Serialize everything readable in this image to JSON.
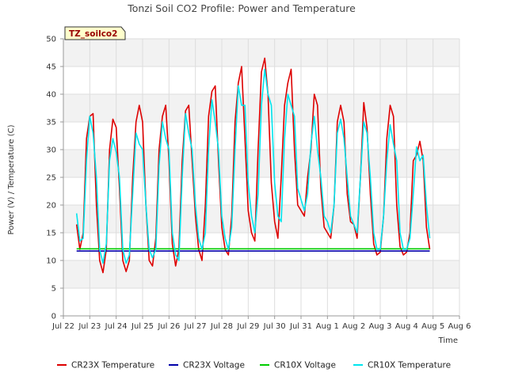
{
  "chart_data": {
    "type": "line",
    "title": "Tonzi Soil CO2 Profile: Power and Temperature",
    "xlabel": "Time",
    "ylabel": "Power (V) / Temperature (C)",
    "ylim": [
      0,
      50
    ],
    "yticks": [
      0,
      5,
      10,
      15,
      20,
      25,
      30,
      35,
      40,
      45,
      50
    ],
    "xlim": [
      "2024-07-22",
      "2024-08-06"
    ],
    "xtick_labels": [
      "Jul 22",
      "Jul 23",
      "Jul 24",
      "Jul 25",
      "Jul 26",
      "Jul 27",
      "Jul 28",
      "Jul 29",
      "Jul 30",
      "Jul 31",
      "Aug 1",
      "Aug 2",
      "Aug 3",
      "Aug 4",
      "Aug 5",
      "Aug 6"
    ],
    "site_tag": "TZ_soilco2",
    "grid": true,
    "legend_position": "bottom",
    "series": [
      {
        "name": "CR23X Temperature",
        "color": "#dd0000",
        "points": [
          [
            "Jul 22 12:00",
            16.5
          ],
          [
            "Jul 22 15:00",
            12.0
          ],
          [
            "Jul 22 18:00",
            15.0
          ],
          [
            "Jul 22 21:00",
            32.0
          ],
          [
            "Jul 23 00:00",
            36.0
          ],
          [
            "Jul 23 03:00",
            36.5
          ],
          [
            "Jul 23 06:00",
            20.0
          ],
          [
            "Jul 23 09:00",
            10.0
          ],
          [
            "Jul 23 12:00",
            7.8
          ],
          [
            "Jul 23 15:00",
            12.0
          ],
          [
            "Jul 23 18:00",
            30.0
          ],
          [
            "Jul 23 21:00",
            35.5
          ],
          [
            "Jul 24 00:00",
            34.0
          ],
          [
            "Jul 24 03:00",
            23.0
          ],
          [
            "Jul 24 06:00",
            10.0
          ],
          [
            "Jul 24 09:00",
            8.0
          ],
          [
            "Jul 24 12:00",
            10.0
          ],
          [
            "Jul 24 15:00",
            25.0
          ],
          [
            "Jul 24 18:00",
            35.0
          ],
          [
            "Jul 24 21:00",
            38.0
          ],
          [
            "Jul 25 00:00",
            35.0
          ],
          [
            "Jul 25 03:00",
            20.0
          ],
          [
            "Jul 25 06:00",
            10.0
          ],
          [
            "Jul 25 09:00",
            9.0
          ],
          [
            "Jul 25 12:00",
            14.0
          ],
          [
            "Jul 25 15:00",
            30.0
          ],
          [
            "Jul 25 18:00",
            36.0
          ],
          [
            "Jul 25 21:00",
            38.0
          ],
          [
            "Jul 26 00:00",
            28.0
          ],
          [
            "Jul 26 03:00",
            13.0
          ],
          [
            "Jul 26 06:00",
            9.0
          ],
          [
            "Jul 26 09:00",
            12.0
          ],
          [
            "Jul 26 12:00",
            28.0
          ],
          [
            "Jul 26 15:00",
            37.0
          ],
          [
            "Jul 26 18:00",
            38.0
          ],
          [
            "Jul 26 21:00",
            28.0
          ],
          [
            "Jul 27 00:00",
            18.0
          ],
          [
            "Jul 27 03:00",
            12.0
          ],
          [
            "Jul 27 06:00",
            10.0
          ],
          [
            "Jul 27 09:00",
            20.0
          ],
          [
            "Jul 27 12:00",
            36.0
          ],
          [
            "Jul 27 15:00",
            40.5
          ],
          [
            "Jul 27 18:00",
            41.5
          ],
          [
            "Jul 27 21:00",
            28.0
          ],
          [
            "Jul 28 00:00",
            16.0
          ],
          [
            "Jul 28 03:00",
            12.0
          ],
          [
            "Jul 28 06:00",
            11.0
          ],
          [
            "Jul 28 09:00",
            18.0
          ],
          [
            "Jul 28 12:00",
            35.0
          ],
          [
            "Jul 28 15:00",
            42.0
          ],
          [
            "Jul 28 18:00",
            45.0
          ],
          [
            "Jul 28 21:00",
            32.0
          ],
          [
            "Jul 29 00:00",
            19.0
          ],
          [
            "Jul 29 03:00",
            15.0
          ],
          [
            "Jul 29 06:00",
            13.5
          ],
          [
            "Jul 29 09:00",
            30.0
          ],
          [
            "Jul 29 12:00",
            44.0
          ],
          [
            "Jul 29 15:00",
            46.5
          ],
          [
            "Jul 29 18:00",
            40.0
          ],
          [
            "Jul 29 21:00",
            24.0
          ],
          [
            "Jul 30 00:00",
            17.0
          ],
          [
            "Jul 30 03:00",
            14.0
          ],
          [
            "Jul 30 06:00",
            25.0
          ],
          [
            "Jul 30 09:00",
            38.0
          ],
          [
            "Jul 30 12:00",
            42.0
          ],
          [
            "Jul 30 15:00",
            44.5
          ],
          [
            "Jul 30 18:00",
            30.0
          ],
          [
            "Jul 30 21:00",
            20.0
          ],
          [
            "Jul 31 00:00",
            19.0
          ],
          [
            "Jul 31 03:00",
            18.0
          ],
          [
            "Jul 31 06:00",
            25.0
          ],
          [
            "Jul 31 09:00",
            30.0
          ],
          [
            "Jul 31 12:00",
            40.0
          ],
          [
            "Jul 31 15:00",
            38.0
          ],
          [
            "Jul 31 18:00",
            23.0
          ],
          [
            "Jul 31 21:00",
            16.0
          ],
          [
            "Aug 1 00:00",
            15.0
          ],
          [
            "Aug 1 03:00",
            14.0
          ],
          [
            "Aug 1 06:00",
            20.0
          ],
          [
            "Aug 1 09:00",
            35.0
          ],
          [
            "Aug 1 12:00",
            38.0
          ],
          [
            "Aug 1 15:00",
            35.0
          ],
          [
            "Aug 1 18:00",
            22.0
          ],
          [
            "Aug 1 21:00",
            17.0
          ],
          [
            "Aug 2 00:00",
            16.5
          ],
          [
            "Aug 2 03:00",
            14.0
          ],
          [
            "Aug 2 06:00",
            25.0
          ],
          [
            "Aug 2 09:00",
            38.5
          ],
          [
            "Aug 2 12:00",
            34.0
          ],
          [
            "Aug 2 15:00",
            22.0
          ],
          [
            "Aug 2 18:00",
            13.0
          ],
          [
            "Aug 2 21:00",
            11.0
          ],
          [
            "Aug 3 00:00",
            11.5
          ],
          [
            "Aug 3 03:00",
            18.0
          ],
          [
            "Aug 3 06:00",
            32.0
          ],
          [
            "Aug 3 09:00",
            38.0
          ],
          [
            "Aug 3 12:00",
            36.0
          ],
          [
            "Aug 3 15:00",
            20.0
          ],
          [
            "Aug 3 18:00",
            12.5
          ],
          [
            "Aug 3 21:00",
            11.0
          ],
          [
            "Aug 4 00:00",
            11.5
          ],
          [
            "Aug 4 03:00",
            15.0
          ],
          [
            "Aug 4 06:00",
            28.0
          ],
          [
            "Aug 4 09:00",
            29.0
          ],
          [
            "Aug 4 12:00",
            31.5
          ],
          [
            "Aug 4 15:00",
            28.0
          ],
          [
            "Aug 4 18:00",
            16.0
          ],
          [
            "Aug 4 21:00",
            12.0
          ]
        ]
      },
      {
        "name": "CR23X Voltage",
        "color": "#0000aa",
        "points": [
          [
            "Jul 22 12:00",
            11.7
          ],
          [
            "Aug 4 21:00",
            11.7
          ]
        ]
      },
      {
        "name": "CR10X Voltage",
        "color": "#00cc00",
        "points": [
          [
            "Jul 22 12:00",
            12.1
          ],
          [
            "Aug 4 21:00",
            12.1
          ]
        ]
      },
      {
        "name": "CR10X Temperature",
        "color": "#00e5ee",
        "points": [
          [
            "Jul 22 12:00",
            18.5
          ],
          [
            "Jul 22 15:00",
            13.5
          ],
          [
            "Jul 22 18:00",
            14.0
          ],
          [
            "Jul 22 21:00",
            28.0
          ],
          [
            "Jul 23 00:00",
            36.0
          ],
          [
            "Jul 23 03:00",
            33.0
          ],
          [
            "Jul 23 06:00",
            25.0
          ],
          [
            "Jul 23 09:00",
            12.0
          ],
          [
            "Jul 23 12:00",
            9.5
          ],
          [
            "Jul 23 15:00",
            13.0
          ],
          [
            "Jul 23 18:00",
            28.0
          ],
          [
            "Jul 23 21:00",
            32.0
          ],
          [
            "Jul 24 00:00",
            29.5
          ],
          [
            "Jul 24 03:00",
            25.0
          ],
          [
            "Jul 24 06:00",
            12.0
          ],
          [
            "Jul 24 09:00",
            9.5
          ],
          [
            "Jul 24 12:00",
            11.0
          ],
          [
            "Jul 24 15:00",
            22.0
          ],
          [
            "Jul 24 18:00",
            33.0
          ],
          [
            "Jul 24 21:00",
            31.0
          ],
          [
            "Jul 25 00:00",
            30.0
          ],
          [
            "Jul 25 03:00",
            20.0
          ],
          [
            "Jul 25 06:00",
            12.0
          ],
          [
            "Jul 25 09:00",
            10.5
          ],
          [
            "Jul 25 12:00",
            12.0
          ],
          [
            "Jul 25 15:00",
            27.0
          ],
          [
            "Jul 25 18:00",
            35.0
          ],
          [
            "Jul 25 21:00",
            32.0
          ],
          [
            "Jul 26 00:00",
            30.0
          ],
          [
            "Jul 26 03:00",
            15.0
          ],
          [
            "Jul 26 06:00",
            11.0
          ],
          [
            "Jul 26 09:00",
            10.0
          ],
          [
            "Jul 26 12:00",
            25.0
          ],
          [
            "Jul 26 15:00",
            36.5
          ],
          [
            "Jul 26 18:00",
            33.0
          ],
          [
            "Jul 26 21:00",
            30.0
          ],
          [
            "Jul 27 00:00",
            20.0
          ],
          [
            "Jul 27 03:00",
            14.0
          ],
          [
            "Jul 27 06:00",
            12.0
          ],
          [
            "Jul 27 09:00",
            15.0
          ],
          [
            "Jul 27 12:00",
            30.0
          ],
          [
            "Jul 27 15:00",
            39.0
          ],
          [
            "Jul 27 18:00",
            35.0
          ],
          [
            "Jul 27 21:00",
            30.0
          ],
          [
            "Jul 28 00:00",
            18.0
          ],
          [
            "Jul 28 03:00",
            14.0
          ],
          [
            "Jul 28 06:00",
            12.0
          ],
          [
            "Jul 28 09:00",
            16.0
          ],
          [
            "Jul 28 12:00",
            30.0
          ],
          [
            "Jul 28 15:00",
            41.5
          ],
          [
            "Jul 28 18:00",
            38.0
          ],
          [
            "Jul 28 21:00",
            38.0
          ],
          [
            "Jul 29 00:00",
            24.0
          ],
          [
            "Jul 29 03:00",
            18.0
          ],
          [
            "Jul 29 06:00",
            15.0
          ],
          [
            "Jul 29 09:00",
            22.0
          ],
          [
            "Jul 29 12:00",
            38.0
          ],
          [
            "Jul 29 15:00",
            44.5
          ],
          [
            "Jul 29 18:00",
            40.0
          ],
          [
            "Jul 29 21:00",
            38.0
          ],
          [
            "Jul 30 00:00",
            24.0
          ],
          [
            "Jul 30 03:00",
            18.0
          ],
          [
            "Jul 30 06:00",
            17.0
          ],
          [
            "Jul 30 09:00",
            32.0
          ],
          [
            "Jul 30 12:00",
            40.0
          ],
          [
            "Jul 30 15:00",
            38.0
          ],
          [
            "Jul 30 18:00",
            36.0
          ],
          [
            "Jul 30 21:00",
            23.0
          ],
          [
            "Jul 31 00:00",
            21.0
          ],
          [
            "Jul 31 03:00",
            19.0
          ],
          [
            "Jul 31 06:00",
            22.0
          ],
          [
            "Jul 31 09:00",
            31.0
          ],
          [
            "Jul 31 12:00",
            36.0
          ],
          [
            "Jul 31 15:00",
            30.0
          ],
          [
            "Jul 31 18:00",
            25.0
          ],
          [
            "Jul 31 21:00",
            18.0
          ],
          [
            "Aug 1 00:00",
            17.0
          ],
          [
            "Aug 1 03:00",
            15.0
          ],
          [
            "Aug 1 06:00",
            20.0
          ],
          [
            "Aug 1 09:00",
            33.0
          ],
          [
            "Aug 1 12:00",
            35.5
          ],
          [
            "Aug 1 15:00",
            32.0
          ],
          [
            "Aug 1 18:00",
            25.0
          ],
          [
            "Aug 1 21:00",
            18.0
          ],
          [
            "Aug 2 00:00",
            16.5
          ],
          [
            "Aug 2 03:00",
            15.0
          ],
          [
            "Aug 2 06:00",
            25.0
          ],
          [
            "Aug 2 09:00",
            35.0
          ],
          [
            "Aug 2 12:00",
            33.0
          ],
          [
            "Aug 2 15:00",
            25.0
          ],
          [
            "Aug 2 18:00",
            15.0
          ],
          [
            "Aug 2 21:00",
            12.0
          ],
          [
            "Aug 3 00:00",
            12.0
          ],
          [
            "Aug 3 03:00",
            18.0
          ],
          [
            "Aug 3 06:00",
            28.0
          ],
          [
            "Aug 3 09:00",
            34.5
          ],
          [
            "Aug 3 12:00",
            31.0
          ],
          [
            "Aug 3 15:00",
            28.0
          ],
          [
            "Aug 3 18:00",
            15.0
          ],
          [
            "Aug 3 21:00",
            12.0
          ],
          [
            "Aug 4 00:00",
            12.0
          ],
          [
            "Aug 4 03:00",
            14.0
          ],
          [
            "Aug 4 06:00",
            22.0
          ],
          [
            "Aug 4 09:00",
            30.5
          ],
          [
            "Aug 4 12:00",
            28.0
          ],
          [
            "Aug 4 15:00",
            29.0
          ],
          [
            "Aug 4 18:00",
            20.0
          ],
          [
            "Aug 4 21:00",
            14.0
          ]
        ]
      }
    ]
  }
}
